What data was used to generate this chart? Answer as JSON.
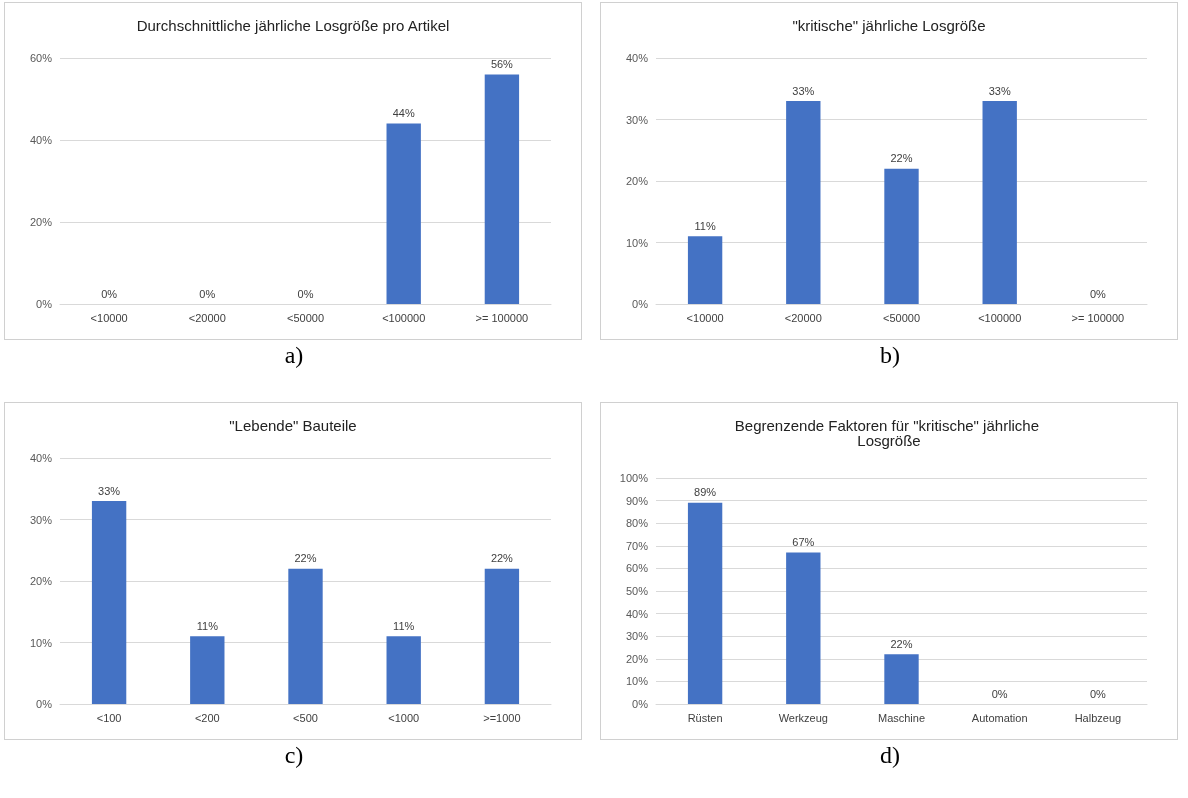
{
  "chart_data": [
    {
      "type": "bar",
      "title": "Durchschnittliche jährliche Losgröße pro Artikel",
      "categories": [
        "<10000",
        "<20000",
        "<50000",
        "<100000",
        ">= 100000"
      ],
      "values": [
        0,
        0,
        0,
        44,
        56
      ],
      "value_labels": [
        "0%",
        "0%",
        "0%",
        "44%",
        "56%"
      ],
      "color": "#4472c4",
      "ylim": [
        0,
        60
      ],
      "yticks": [
        {
          "value": 0,
          "label": "0%"
        },
        {
          "value": 20,
          "label": "20%"
        },
        {
          "value": 40,
          "label": "40%"
        },
        {
          "value": 60,
          "label": "60%"
        }
      ],
      "grid": "y",
      "annotations": [
        "a)"
      ]
    },
    {
      "type": "bar",
      "title": "\"kritische\" jährliche Losgröße",
      "categories": [
        "<10000",
        "<20000",
        "<50000",
        "<100000",
        ">= 100000"
      ],
      "values": [
        11,
        33,
        22,
        33,
        0
      ],
      "value_labels": [
        "11%",
        "33%",
        "22%",
        "33%",
        "0%"
      ],
      "color": "#4472c4",
      "ylim": [
        0,
        40
      ],
      "yticks": [
        {
          "value": 0,
          "label": "0%"
        },
        {
          "value": 10,
          "label": "10%"
        },
        {
          "value": 20,
          "label": "20%"
        },
        {
          "value": 30,
          "label": "30%"
        },
        {
          "value": 40,
          "label": "40%"
        }
      ],
      "grid": "y",
      "annotations": [
        "b)"
      ]
    },
    {
      "type": "bar",
      "title": "\"Lebende\" Bauteile",
      "categories": [
        "<100",
        "<200",
        "<500",
        "<1000",
        ">=1000"
      ],
      "values": [
        33,
        11,
        22,
        11,
        22
      ],
      "value_labels": [
        "33%",
        "11%",
        "22%",
        "11%",
        "22%"
      ],
      "color": "#4472c4",
      "ylim": [
        0,
        40
      ],
      "yticks": [
        {
          "value": 0,
          "label": "0%"
        },
        {
          "value": 10,
          "label": "10%"
        },
        {
          "value": 20,
          "label": "20%"
        },
        {
          "value": 30,
          "label": "30%"
        },
        {
          "value": 40,
          "label": "40%"
        }
      ],
      "grid": "y",
      "annotations": [
        "c)"
      ]
    },
    {
      "type": "bar",
      "title": "Begrenzende Faktoren für \"kritische\" jährliche Losgröße",
      "categories": [
        "Rüsten",
        "Werkzeug",
        "Maschine",
        "Automation",
        "Halbzeug"
      ],
      "values": [
        89,
        67,
        22,
        0,
        0
      ],
      "value_labels": [
        "89%",
        "67%",
        "22%",
        "0%",
        "0%"
      ],
      "color": "#4472c4",
      "ylim": [
        0,
        100
      ],
      "yticks": [
        {
          "value": 0,
          "label": "0%"
        },
        {
          "value": 10,
          "label": "10%"
        },
        {
          "value": 20,
          "label": "20%"
        },
        {
          "value": 30,
          "label": "30%"
        },
        {
          "value": 40,
          "label": "40%"
        },
        {
          "value": 50,
          "label": "50%"
        },
        {
          "value": 60,
          "label": "60%"
        },
        {
          "value": 70,
          "label": "70%"
        },
        {
          "value": 80,
          "label": "80%"
        },
        {
          "value": 90,
          "label": "90%"
        },
        {
          "value": 100,
          "label": "100%"
        }
      ],
      "grid": "y",
      "annotations": [
        "d)"
      ]
    }
  ]
}
